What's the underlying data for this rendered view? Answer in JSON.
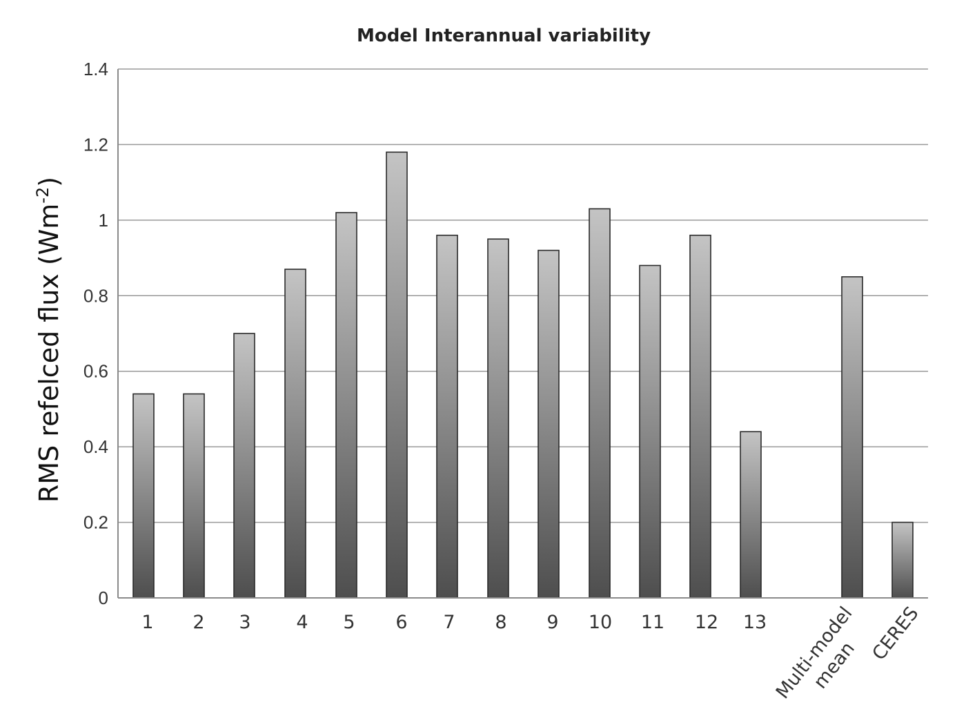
{
  "chart_data": {
    "type": "bar",
    "title": "Model Interannual variability",
    "xlabel": "",
    "ylabel": "RMS refelced flux (Wm",
    "ylabel_sup": "-2",
    "ylabel_end": ")",
    "ylim": [
      0,
      1.4
    ],
    "yticks": [
      "0",
      "0.2",
      "0.4",
      "0.6",
      "0.8",
      "1",
      "1.2",
      "1.4"
    ],
    "categories": [
      "1",
      "2",
      "3",
      "4",
      "5",
      "6",
      "7",
      "8",
      "9",
      "10",
      "11",
      "12",
      "13",
      "Multi-model mean",
      "CERES"
    ],
    "category_lines": [
      [
        "1"
      ],
      [
        "2"
      ],
      [
        "3"
      ],
      [
        "4"
      ],
      [
        "5"
      ],
      [
        "6"
      ],
      [
        "7"
      ],
      [
        "8"
      ],
      [
        "9"
      ],
      [
        "10"
      ],
      [
        "11"
      ],
      [
        "12"
      ],
      [
        "13"
      ],
      [
        "Multi-model",
        "mean"
      ],
      [
        "CERES"
      ]
    ],
    "values": [
      0.54,
      0.54,
      0.7,
      0.87,
      1.02,
      1.18,
      0.96,
      0.95,
      0.92,
      1.03,
      0.88,
      0.96,
      0.44,
      0.85,
      0.2
    ],
    "grid": true,
    "legend": "none",
    "bar_color_light": "#c4c4c4",
    "bar_color_dark": "#4e4e4e"
  }
}
